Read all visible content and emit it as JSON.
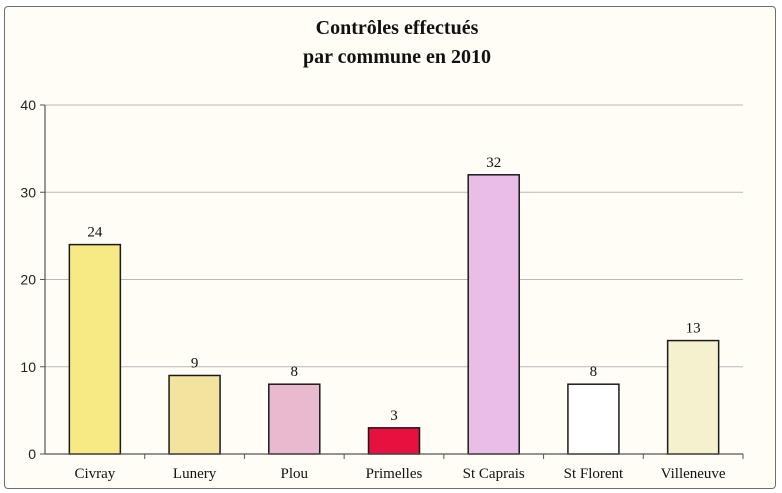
{
  "chart_data": {
    "type": "bar",
    "title": "Contrôles effectués",
    "subtitle": "par commune en 2010",
    "categories": [
      "Civray",
      "Lunery",
      "Plou",
      "Primelles",
      "St Caprais",
      "St Florent",
      "Villeneuve"
    ],
    "values": [
      24,
      9,
      8,
      3,
      32,
      8,
      13
    ],
    "colors": [
      "#f7ea85",
      "#f2e49e",
      "#e8b9cf",
      "#e8103e",
      "#e9bde6",
      "#ffffff",
      "#f5f1cf"
    ],
    "ylim": [
      0,
      40
    ],
    "yticks": [
      0,
      10,
      20,
      30,
      40
    ],
    "xlabel": "",
    "ylabel": "",
    "grid": true,
    "legend": "none"
  }
}
